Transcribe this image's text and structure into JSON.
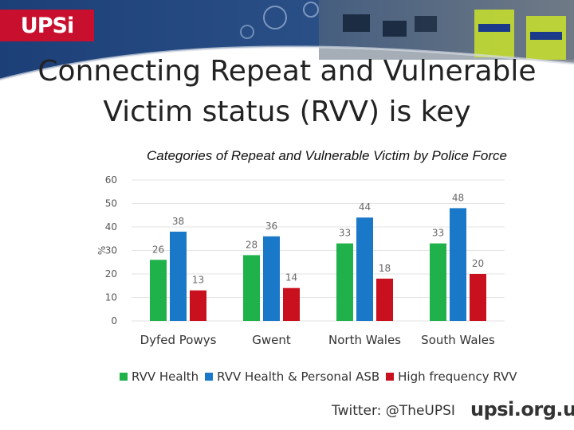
{
  "header": {
    "logo_text": "UPSi",
    "title_line1": "Connecting Repeat and Vulnerable",
    "title_line2": "Victim status (RVV) is key"
  },
  "colors": {
    "rvv_health": "#1fb24a",
    "rvv_health_personal_asb": "#1a78c8",
    "high_frequency_rvv": "#c8101e",
    "logo_red": "#c8102e",
    "banner_blue": "#1c3f77"
  },
  "chart_data": {
    "type": "bar",
    "title": "Categories of Repeat and Vulnerable Victim by Police Force",
    "xlabel": "",
    "ylabel": "%",
    "ylim": [
      0,
      60
    ],
    "yticks": [
      0,
      10,
      20,
      30,
      40,
      50,
      60
    ],
    "grid": true,
    "legend_position": "bottom",
    "categories": [
      "Dyfed Powys",
      "Gwent",
      "North Wales",
      "South Wales"
    ],
    "series": [
      {
        "name": "RVV Health",
        "color": "#1fb24a",
        "values": [
          26,
          28,
          33,
          33
        ]
      },
      {
        "name": "RVV Health & Personal ASB",
        "color": "#1a78c8",
        "values": [
          38,
          36,
          44,
          48
        ]
      },
      {
        "name": "High frequency RVV",
        "color": "#c8101e",
        "values": [
          13,
          14,
          18,
          20
        ]
      }
    ]
  },
  "footer": {
    "twitter": "Twitter: @TheUPSI",
    "site": "upsi.org.uk"
  }
}
